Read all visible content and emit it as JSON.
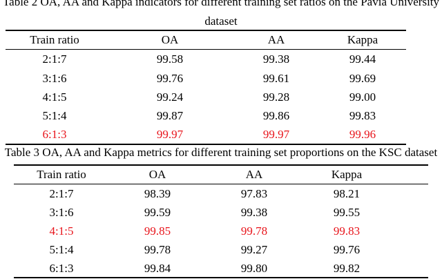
{
  "table2": {
    "caption_line1": "Table 2 OA, AA and Kappa indicators for different training set ratios on the Pavia University",
    "caption_line2": "dataset",
    "headers": [
      "Train ratio",
      "OA",
      "AA",
      "Kappa"
    ],
    "rows": [
      [
        "2:1:7",
        "99.58",
        "99.38",
        "99.44"
      ],
      [
        "3:1:6",
        "99.76",
        "99.61",
        "99.69"
      ],
      [
        "4:1:5",
        "99.24",
        "99.28",
        "99.00"
      ],
      [
        "5:1:4",
        "99.87",
        "99.86",
        "99.83"
      ],
      [
        "6:1:3",
        "99.97",
        "99.97",
        "99.96"
      ]
    ],
    "highlight_row": 4
  },
  "table3": {
    "caption": "Table 3 OA, AA and Kappa metrics for different training set proportions on the KSC dataset",
    "headers": [
      "Train ratio",
      "OA",
      "AA",
      "Kappa"
    ],
    "rows": [
      [
        "2:1:7",
        "98.39",
        "97.83",
        "98.21"
      ],
      [
        "3:1:6",
        "99.59",
        "99.38",
        "99.55"
      ],
      [
        "4:1:5",
        "99.85",
        "99.78",
        "99.83"
      ],
      [
        "5:1:4",
        "99.78",
        "99.27",
        "99.76"
      ],
      [
        "6:1:3",
        "99.84",
        "99.80",
        "99.82"
      ]
    ],
    "highlight_row": 2
  },
  "colors": {
    "highlight": "#e8141b",
    "text": "#000000"
  }
}
